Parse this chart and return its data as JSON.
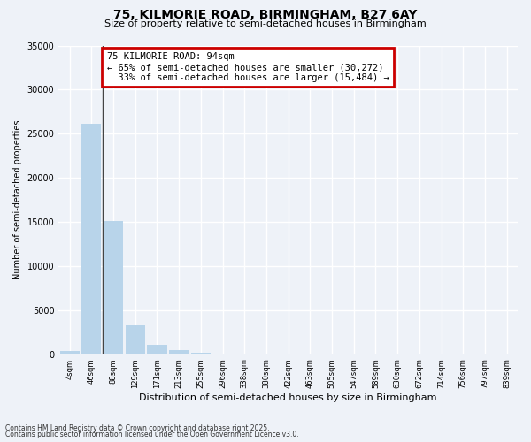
{
  "title": "75, KILMORIE ROAD, BIRMINGHAM, B27 6AY",
  "subtitle": "Size of property relative to semi-detached houses in Birmingham",
  "xlabel": "Distribution of semi-detached houses by size in Birmingham",
  "ylabel": "Number of semi-detached properties",
  "categories": [
    "4sqm",
    "46sqm",
    "88sqm",
    "129sqm",
    "171sqm",
    "213sqm",
    "255sqm",
    "296sqm",
    "338sqm",
    "380sqm",
    "422sqm",
    "463sqm",
    "505sqm",
    "547sqm",
    "589sqm",
    "630sqm",
    "672sqm",
    "714sqm",
    "756sqm",
    "797sqm",
    "839sqm"
  ],
  "values": [
    350,
    26100,
    15100,
    3300,
    1050,
    420,
    130,
    60,
    10,
    0,
    0,
    0,
    0,
    0,
    0,
    0,
    0,
    0,
    0,
    0,
    0
  ],
  "bar_color": "#b8d4ea",
  "marker_bar_index": 2,
  "property_label": "75 KILMORIE ROAD: 94sqm",
  "smaller_pct": "65% of semi-detached houses are smaller (30,272)",
  "larger_pct": "33% of semi-detached houses are larger (15,484)",
  "annotation_box_color": "#cc0000",
  "ylim": [
    0,
    35000
  ],
  "yticks": [
    0,
    5000,
    10000,
    15000,
    20000,
    25000,
    30000,
    35000
  ],
  "background_color": "#eef2f8",
  "grid_color": "#ffffff",
  "footer1": "Contains HM Land Registry data © Crown copyright and database right 2025.",
  "footer2": "Contains public sector information licensed under the Open Government Licence v3.0."
}
